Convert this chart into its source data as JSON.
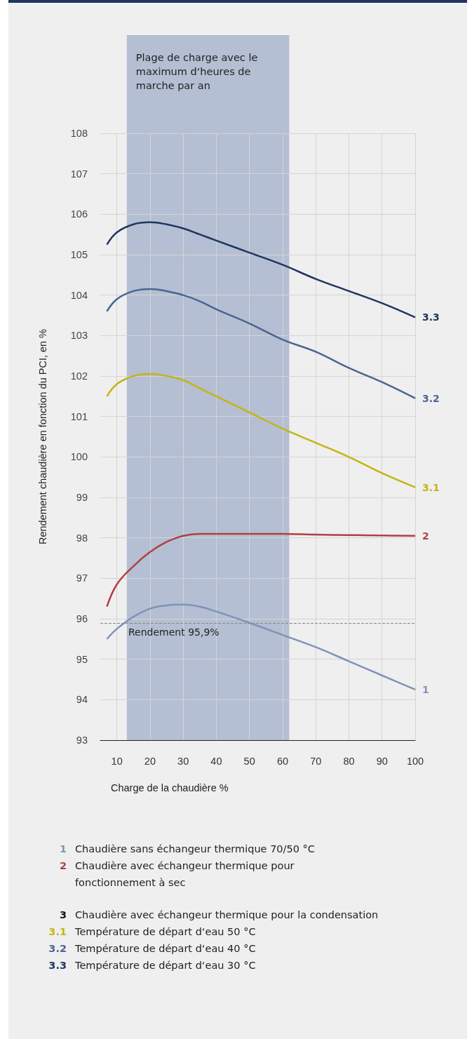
{
  "chart_data": {
    "type": "line",
    "xlabel": "Charge de la chaudière %",
    "ylabel": "Rendement chaudière en fonction du PCI, en %",
    "x": [
      7,
      10,
      15,
      20,
      25,
      30,
      35,
      40,
      50,
      60,
      70,
      80,
      90,
      100
    ],
    "series": [
      {
        "name": "3.3",
        "color": "#1f3560",
        "values": [
          105.25,
          105.55,
          105.75,
          105.8,
          105.75,
          105.65,
          105.5,
          105.35,
          105.05,
          104.75,
          104.4,
          104.1,
          103.8,
          103.45
        ]
      },
      {
        "name": "3.2",
        "color": "#4a6590",
        "values": [
          103.6,
          103.9,
          104.1,
          104.15,
          104.1,
          104.0,
          103.85,
          103.65,
          103.3,
          102.9,
          102.6,
          102.2,
          101.85,
          101.45
        ]
      },
      {
        "name": "3.1",
        "color": "#c4b414",
        "values": [
          101.5,
          101.8,
          102.0,
          102.05,
          102.0,
          101.9,
          101.7,
          101.5,
          101.1,
          100.7,
          100.35,
          100.0,
          99.6,
          99.25
        ]
      },
      {
        "name": "2",
        "color": "#b04040",
        "values": [
          96.3,
          96.85,
          97.3,
          97.65,
          97.9,
          98.05,
          98.1,
          98.1,
          98.1,
          98.1,
          98.08,
          98.07,
          98.06,
          98.05
        ]
      },
      {
        "name": "1",
        "color": "#7f93b8",
        "values": [
          95.5,
          95.75,
          96.05,
          96.25,
          96.33,
          96.35,
          96.3,
          96.18,
          95.9,
          95.6,
          95.3,
          94.95,
          94.6,
          94.25
        ]
      }
    ],
    "xlim": [
      5,
      100
    ],
    "xticks": [
      10,
      20,
      30,
      40,
      50,
      60,
      70,
      80,
      90,
      100
    ],
    "ylim": [
      93,
      108
    ],
    "yticks": [
      93,
      94,
      95,
      96,
      97,
      98,
      99,
      100,
      101,
      102,
      103,
      104,
      105,
      106,
      107,
      108
    ],
    "grid": true,
    "legend": false,
    "marker": "none",
    "line_style": "solid",
    "ref_lines": [
      {
        "axis": "y",
        "value": 95.9,
        "label": "Rendement 95,9%",
        "color": "#888888",
        "line_style": "dashed"
      }
    ],
    "bands": [
      {
        "axis": "x",
        "from": 13,
        "to": 62,
        "label": "Plage de charge avec le maximum d‘heures de marche par an",
        "color": "#b4bfd3"
      }
    ],
    "annotations": [
      "1 Chaudière sans échangeur thermique 70/50 °C",
      "2 Chaudière avec échangeur thermique pour fonctionnement à sec",
      "3 Chaudière avec échangeur thermique pour la condensation",
      "3.1 Température de départ d‘eau 50 °C",
      "3.2 Température de départ d‘eau 40 °C",
      "3.3 Température de départ d‘eau 30 °C"
    ]
  }
}
